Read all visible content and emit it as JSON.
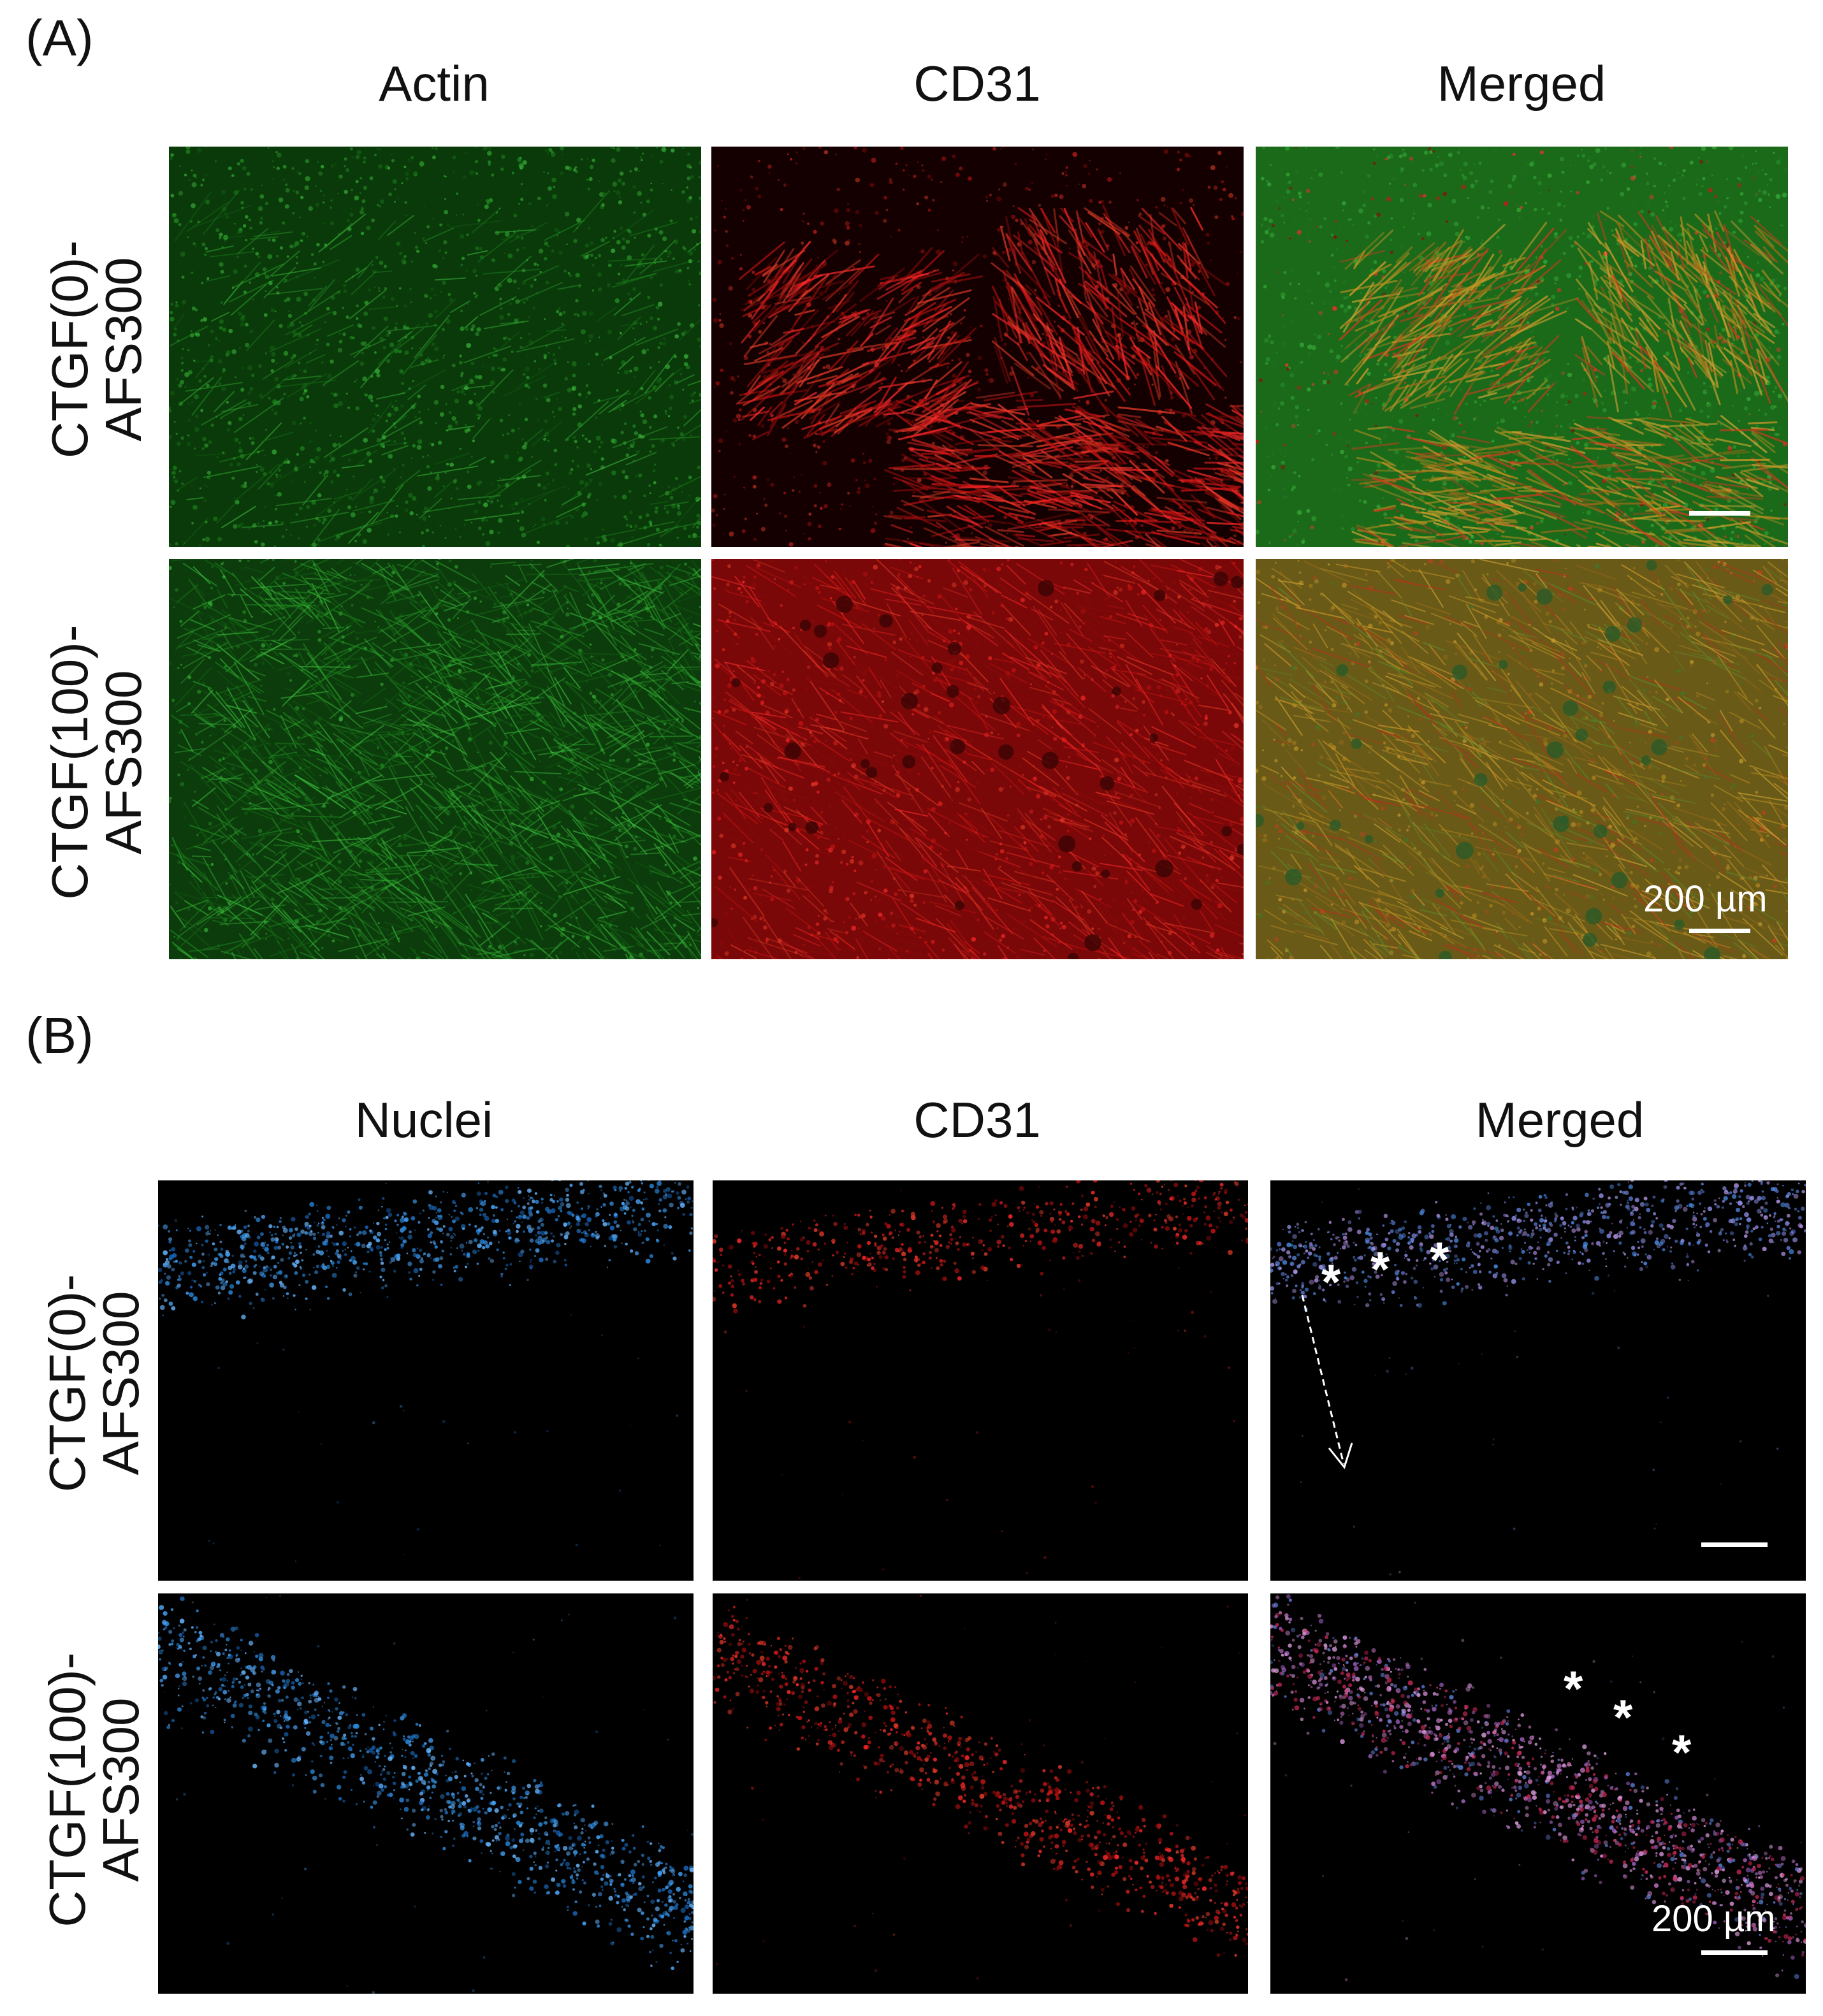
{
  "panels": [
    {
      "letter": "(A)",
      "columns": [
        "Actin",
        "CD31",
        "Merged"
      ],
      "rows": [
        {
          "line1": "CTGF(0)-",
          "line2": "AFS300"
        },
        {
          "line1": "CTGF(100)-",
          "line2": "AFS300"
        }
      ],
      "scale_bar_label": "200 µm"
    },
    {
      "letter": "(B)",
      "columns": [
        "Nuclei",
        "CD31",
        "Merged"
      ],
      "rows": [
        {
          "line1": "CTGF(0)-",
          "line2": "AFS300"
        },
        {
          "line1": "CTGF(100)-",
          "line2": "AFS300"
        }
      ],
      "scale_bar_label": "200 µm",
      "annotation_symbol": "*"
    }
  ],
  "channel_colors": {
    "actin": "#1f8a1f",
    "cd31": "#d01414",
    "nuclei": "#2a8ce0",
    "background_dark": "#000000"
  }
}
